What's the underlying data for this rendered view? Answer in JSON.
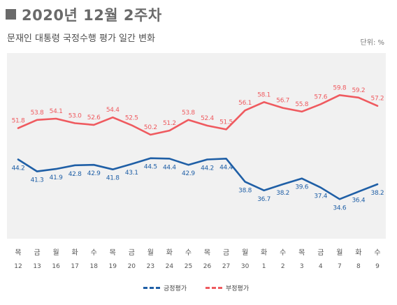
{
  "header": {
    "title": "2020년 12월 2주차",
    "subtitle": "문재인 대통령 국정수행 평가 일간 변화",
    "unit": "단위: %"
  },
  "colors": {
    "positive": "#1f5fa6",
    "negative": "#ef5a5f",
    "plot_bg": "#f1f1f1",
    "title": "#6a6a6a"
  },
  "chart_data": {
    "type": "line",
    "x_days": [
      "목",
      "금",
      "월",
      "화",
      "수",
      "목",
      "금",
      "월",
      "화",
      "수",
      "목",
      "금",
      "월",
      "화",
      "수",
      "목",
      "금",
      "월",
      "화",
      "수"
    ],
    "x_dates": [
      "12",
      "13",
      "16",
      "17",
      "18",
      "19",
      "20",
      "23",
      "24",
      "25",
      "26",
      "27",
      "30",
      "1",
      "2",
      "3",
      "4",
      "7",
      "8",
      "9"
    ],
    "ylim": [
      25,
      70
    ],
    "grid": false,
    "legend_position": "bottom",
    "series": [
      {
        "name": "긍정평가",
        "color": "#1f5fa6",
        "values": [
          44.2,
          41.3,
          41.9,
          42.8,
          42.9,
          41.8,
          43.1,
          44.5,
          44.4,
          42.9,
          44.2,
          44.4,
          38.8,
          36.7,
          38.2,
          39.6,
          37.4,
          34.6,
          36.4,
          38.2
        ]
      },
      {
        "name": "부정평가",
        "color": "#ef5a5f",
        "values": [
          51.8,
          53.8,
          54.1,
          53.0,
          52.6,
          54.4,
          52.5,
          50.2,
          51.2,
          53.8,
          52.4,
          51.5,
          56.1,
          58.1,
          56.7,
          55.8,
          57.6,
          59.8,
          59.2,
          57.2
        ]
      }
    ]
  },
  "legend": [
    {
      "label": "긍정평가",
      "color": "#1f5fa6"
    },
    {
      "label": "부정평가",
      "color": "#ef5a5f"
    }
  ]
}
